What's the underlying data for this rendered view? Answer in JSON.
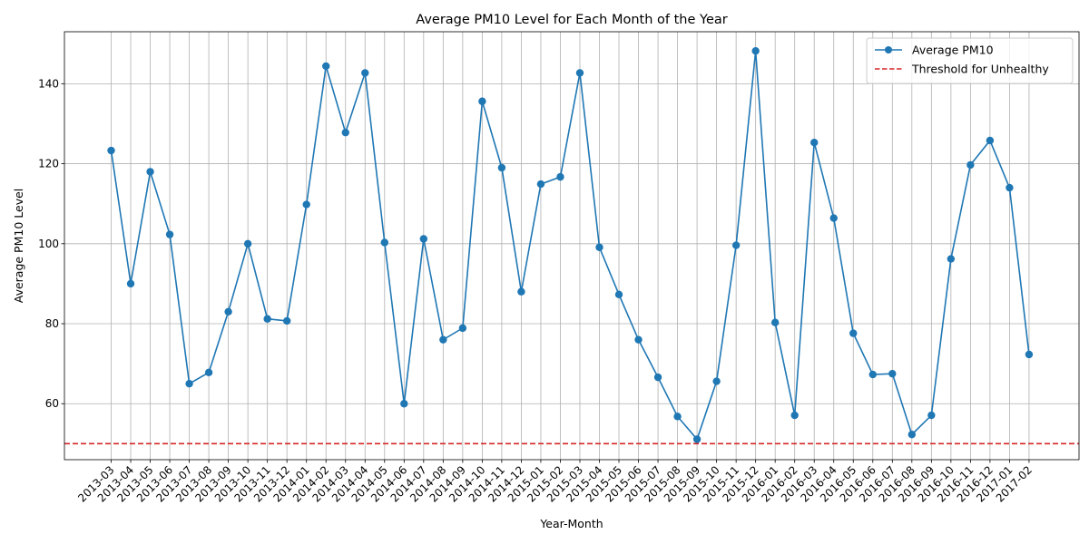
{
  "chart_data": {
    "type": "line",
    "title": "Average PM10 Level for Each Month of the Year",
    "xlabel": "Year-Month",
    "ylabel": "Average PM10 Level",
    "ylim": [
      46,
      153
    ],
    "yticks": [
      60,
      80,
      100,
      120,
      140
    ],
    "grid": true,
    "legend_position": "top-right",
    "categories": [
      "2013-03",
      "2013-04",
      "2013-05",
      "2013-06",
      "2013-07",
      "2013-08",
      "2013-09",
      "2013-10",
      "2013-11",
      "2013-12",
      "2014-01",
      "2014-02",
      "2014-03",
      "2014-04",
      "2014-05",
      "2014-06",
      "2014-07",
      "2014-08",
      "2014-09",
      "2014-10",
      "2014-11",
      "2014-12",
      "2015-01",
      "2015-02",
      "2015-03",
      "2015-04",
      "2015-05",
      "2015-06",
      "2015-07",
      "2015-08",
      "2015-09",
      "2015-10",
      "2015-11",
      "2015-12",
      "2016-01",
      "2016-02",
      "2016-03",
      "2016-04",
      "2016-05",
      "2016-06",
      "2016-07",
      "2016-08",
      "2016-09",
      "2016-10",
      "2016-11",
      "2016-12",
      "2017-01",
      "2017-02"
    ],
    "series": [
      {
        "name": "Average PM10",
        "color": "#1f77b4",
        "values": [
          123.3,
          90.0,
          118.0,
          102.3,
          65.0,
          67.8,
          83.0,
          100.0,
          81.2,
          80.7,
          109.8,
          144.4,
          127.8,
          142.7,
          100.3,
          60.0,
          101.2,
          76.0,
          78.9,
          135.6,
          119.0,
          88.0,
          114.9,
          116.7,
          142.7,
          99.1,
          87.3,
          76.0,
          66.6,
          56.8,
          51.1,
          65.6,
          99.6,
          148.2,
          80.3,
          57.1,
          125.3,
          106.4,
          77.6,
          67.3,
          67.5,
          52.3,
          57.1,
          96.2,
          119.7,
          125.8,
          114.0,
          72.3
        ]
      }
    ],
    "threshold": {
      "name": "Threshold for Unhealthy",
      "value": 50,
      "color": "#d62728"
    }
  }
}
